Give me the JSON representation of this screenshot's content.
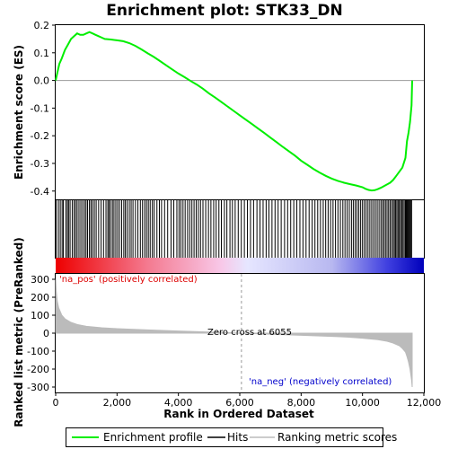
{
  "title": "Enrichment plot: STK33_DN",
  "colors": {
    "es_line": "#00ee00",
    "hit": "#000000",
    "metric_fill": "#bbbbbb",
    "pos_label": "#dd0000",
    "neg_label": "#0000cc",
    "zero_line": "#999999",
    "frame": "#000000"
  },
  "legend": {
    "enrichment_profile": "Enrichment profile",
    "hits": "Hits",
    "ranking_metric_scores": "Ranking metric scores"
  },
  "chart_data": [
    {
      "type": "line",
      "name": "enrichment-score",
      "ylabel": "Enrichment score (ES)",
      "xlim": [
        0,
        12000
      ],
      "ylim": [
        -0.43,
        0.2
      ],
      "yticks": [
        0.2,
        0.1,
        0.0,
        -0.1,
        -0.2,
        -0.3,
        -0.4
      ],
      "ytick_labels": [
        "0.2",
        "0.1",
        "0.0",
        "-0.1",
        "-0.2",
        "-0.3",
        "-0.4"
      ],
      "zero_line": true,
      "x": [
        0,
        60,
        120,
        200,
        300,
        400,
        500,
        600,
        700,
        800,
        900,
        1000,
        1100,
        1200,
        1300,
        1400,
        1500,
        1600,
        1800,
        2000,
        2200,
        2400,
        2600,
        2800,
        3000,
        3200,
        3400,
        3600,
        3800,
        4000,
        4200,
        4400,
        4600,
        4800,
        5000,
        5200,
        5400,
        5600,
        5800,
        6000,
        6200,
        6400,
        6600,
        6800,
        7000,
        7200,
        7400,
        7600,
        7800,
        8000,
        8200,
        8400,
        8600,
        8800,
        9000,
        9200,
        9400,
        9600,
        9800,
        10000,
        10100,
        10200,
        10300,
        10400,
        10500,
        10600,
        10700,
        10800,
        10900,
        11000,
        11100,
        11200,
        11300,
        11400,
        11450,
        11500,
        11550,
        11600,
        11620
      ],
      "y": [
        0.0,
        0.03,
        0.06,
        0.08,
        0.11,
        0.13,
        0.15,
        0.16,
        0.17,
        0.165,
        0.165,
        0.17,
        0.175,
        0.17,
        0.165,
        0.16,
        0.155,
        0.15,
        0.148,
        0.145,
        0.142,
        0.135,
        0.125,
        0.112,
        0.098,
        0.085,
        0.07,
        0.055,
        0.04,
        0.025,
        0.012,
        -0.002,
        -0.015,
        -0.03,
        -0.047,
        -0.062,
        -0.078,
        -0.094,
        -0.11,
        -0.126,
        -0.142,
        -0.158,
        -0.174,
        -0.19,
        -0.207,
        -0.223,
        -0.24,
        -0.256,
        -0.272,
        -0.29,
        -0.305,
        -0.32,
        -0.333,
        -0.345,
        -0.355,
        -0.363,
        -0.37,
        -0.375,
        -0.38,
        -0.386,
        -0.392,
        -0.396,
        -0.398,
        -0.397,
        -0.393,
        -0.388,
        -0.382,
        -0.376,
        -0.37,
        -0.36,
        -0.345,
        -0.33,
        -0.315,
        -0.28,
        -0.22,
        -0.19,
        -0.15,
        -0.09,
        0.0
      ]
    },
    {
      "type": "hits",
      "name": "hits",
      "xlim": [
        0,
        12000
      ],
      "positions": [
        20,
        90,
        150,
        210,
        250,
        330,
        380,
        420,
        470,
        540,
        600,
        650,
        700,
        760,
        820,
        880,
        940,
        990,
        1040,
        1100,
        1150,
        1200,
        1260,
        1320,
        1400,
        1480,
        1560,
        1640,
        1700,
        1740,
        1790,
        1850,
        1900,
        1960,
        2020,
        2080,
        2150,
        2220,
        2270,
        2330,
        2400,
        2460,
        2520,
        2600,
        2680,
        2760,
        2830,
        2900,
        2960,
        3020,
        3080,
        3150,
        3210,
        3300,
        3380,
        3450,
        3550,
        3650,
        3760,
        3850,
        3950,
        4020,
        4080,
        4150,
        4220,
        4300,
        4370,
        4440,
        4510,
        4580,
        4650,
        4720,
        4800,
        4890,
        4980,
        5060,
        5150,
        5230,
        5320,
        5400,
        5500,
        5580,
        5680,
        5760,
        5850,
        5950,
        6050,
        6150,
        6250,
        6350,
        6450,
        6560,
        6660,
        6760,
        6860,
        6950,
        7050,
        7150,
        7250,
        7350,
        7460,
        7560,
        7660,
        7760,
        7860,
        7960,
        8060,
        8160,
        8260,
        8360,
        8450,
        8540,
        8630,
        8720,
        8800,
        8880,
        8960,
        9040,
        9120,
        9200,
        9280,
        9360,
        9430,
        9500,
        9570,
        9640,
        9700,
        9760,
        9820,
        9880,
        9940,
        10000,
        10060,
        10120,
        10180,
        10240,
        10300,
        10360,
        10420,
        10480,
        10540,
        10600,
        10650,
        10700,
        10750,
        10800,
        10850,
        10900,
        10950,
        11000,
        11040,
        11080,
        11120,
        11160,
        11200,
        11240,
        11280,
        11320,
        11360,
        11400,
        11430,
        11460,
        11490,
        11520,
        11550,
        11580,
        11600
      ]
    },
    {
      "type": "area",
      "name": "ranked-list-metric",
      "xlabel": "Rank in Ordered Dataset",
      "ylabel": "Ranked list metric (PreRanked)",
      "xlim": [
        0,
        12000
      ],
      "ylim": [
        -330,
        330
      ],
      "xticks": [
        0,
        2000,
        4000,
        6000,
        8000,
        10000,
        12000
      ],
      "xtick_labels": [
        "0",
        "2,000",
        "4,000",
        "6,000",
        "8,000",
        "10,000",
        "12,000"
      ],
      "yticks": [
        300,
        200,
        100,
        0,
        -100,
        -200,
        -300
      ],
      "ytick_labels": [
        "300",
        "200",
        "100",
        "0",
        "-100",
        "-200",
        "-300"
      ],
      "x": [
        0,
        20,
        50,
        100,
        200,
        300,
        500,
        700,
        1000,
        1500,
        2000,
        3000,
        4000,
        5000,
        6055,
        7000,
        8000,
        9000,
        9500,
        10000,
        10500,
        10800,
        11000,
        11200,
        11300,
        11400,
        11450,
        11500,
        11550,
        11600,
        11620
      ],
      "y": [
        300,
        230,
        180,
        140,
        100,
        80,
        60,
        48,
        38,
        30,
        25,
        18,
        12,
        6,
        0,
        -6,
        -12,
        -18,
        -22,
        -28,
        -36,
        -45,
        -55,
        -70,
        -85,
        -105,
        -130,
        -160,
        -200,
        -260,
        -300
      ],
      "annotations": {
        "pos_label": "'na_pos' (positively correlated)",
        "neg_label": "'na_neg' (negatively correlated)",
        "zero_cross": "Zero cross at 6055",
        "zero_cross_x": 6055
      }
    }
  ]
}
